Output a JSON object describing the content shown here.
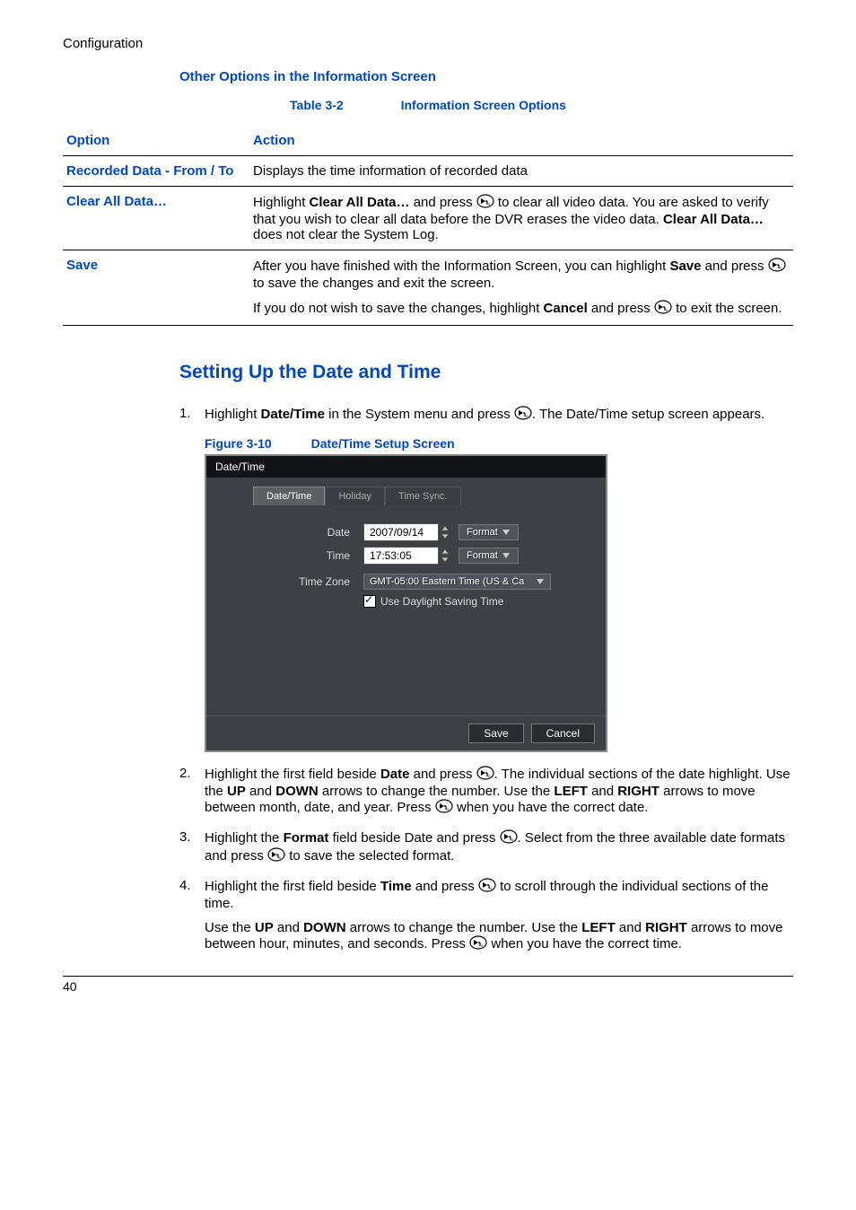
{
  "header": {
    "label": "Configuration"
  },
  "section1": {
    "heading": "Other Options in the Information Screen",
    "table_caption": {
      "label": "Table 3-2",
      "title": "Information Screen Options"
    },
    "columns": {
      "option": "Option",
      "action": "Action"
    },
    "rows": [
      {
        "option": "Recorded Data - From / To",
        "action_parts": [
          {
            "text": "Displays the time information of recorded data"
          }
        ]
      },
      {
        "option": "Clear All Data…",
        "action_parts": [
          {
            "text": "Highlight "
          },
          {
            "bold": "Clear All Data…"
          },
          {
            "text": " and press "
          },
          {
            "icon": true
          },
          {
            "text": " to clear all video data. You are asked to verify that you wish to clear all data before the DVR erases the video data. "
          },
          {
            "bold": "Clear All Data…"
          },
          {
            "text": " does not clear the System Log."
          }
        ]
      },
      {
        "option": "Save",
        "action_parts": [
          {
            "text": "After you have finished with the Information Screen, you can highlight "
          },
          {
            "bold": "Save"
          },
          {
            "text": " and press "
          },
          {
            "icon": true
          },
          {
            "text": " to save the changes and exit the screen."
          }
        ],
        "action_parts2": [
          {
            "text": "If you do not wish to save the changes, highlight "
          },
          {
            "bold": "Cancel"
          },
          {
            "text": " and press "
          },
          {
            "icon": true
          },
          {
            "text": " to exit the screen."
          }
        ]
      }
    ]
  },
  "section2": {
    "heading": "Setting Up the Date and Time",
    "step1": {
      "num": "1.",
      "parts": [
        {
          "text": "Highlight "
        },
        {
          "bold": "Date/Time"
        },
        {
          "text": " in the System menu and press "
        },
        {
          "icon": true
        },
        {
          "text": ". The Date/Time setup screen appears."
        }
      ]
    },
    "figure": {
      "label": "Figure 3-10",
      "title": "Date/Time Setup Screen"
    },
    "dialog": {
      "title": "Date/Time",
      "tabs": {
        "t1": "Date/Time",
        "t2": "Holiday",
        "t3": "Time Sync."
      },
      "labels": {
        "date": "Date",
        "time": "Time",
        "tz": "Time Zone"
      },
      "values": {
        "date": "2007/09/14",
        "time": "17:53:05",
        "tz": "GMT-05:00  Eastern Time (US & Ca"
      },
      "format_btn": "Format",
      "dst": "Use Daylight Saving Time",
      "buttons": {
        "save": "Save",
        "cancel": "Cancel"
      }
    },
    "step2": {
      "num": "2.",
      "parts": [
        {
          "text": "Highlight the first field beside "
        },
        {
          "bold": "Date"
        },
        {
          "text": " and press "
        },
        {
          "icon": true
        },
        {
          "text": ". The individual sections of the date highlight. Use the "
        },
        {
          "bold": "UP"
        },
        {
          "text": " and "
        },
        {
          "bold": "DOWN"
        },
        {
          "text": " arrows to change the number. Use the "
        },
        {
          "bold": "LEFT"
        },
        {
          "text": " and "
        },
        {
          "bold": "RIGHT"
        },
        {
          "text": " arrows to move between month, date, and year. Press "
        },
        {
          "icon": true
        },
        {
          "text": " when you have the correct date."
        }
      ]
    },
    "step3": {
      "num": "3.",
      "parts": [
        {
          "text": "Highlight the "
        },
        {
          "bold": "Format"
        },
        {
          "text": " field beside Date and press "
        },
        {
          "icon": true
        },
        {
          "text": ". Select from the three available date formats and press "
        },
        {
          "icon": true
        },
        {
          "text": " to save the selected format."
        }
      ]
    },
    "step4": {
      "num": "4.",
      "parts": [
        {
          "text": "Highlight the first field beside "
        },
        {
          "bold": "Time"
        },
        {
          "text": " and press "
        },
        {
          "icon": true
        },
        {
          "text": " to scroll through the individual sections of the time."
        }
      ],
      "sub": [
        {
          "text": "Use the "
        },
        {
          "bold": "UP"
        },
        {
          "text": " and "
        },
        {
          "bold": "DOWN"
        },
        {
          "text": " arrows to change the number. Use the "
        },
        {
          "bold": "LEFT"
        },
        {
          "text": " and "
        },
        {
          "bold": "RIGHT"
        },
        {
          "text": " arrows to move between hour, minutes, and seconds. Press "
        },
        {
          "icon": true
        },
        {
          "text": " when you have the correct time."
        }
      ]
    }
  },
  "footer": {
    "page": "40"
  }
}
